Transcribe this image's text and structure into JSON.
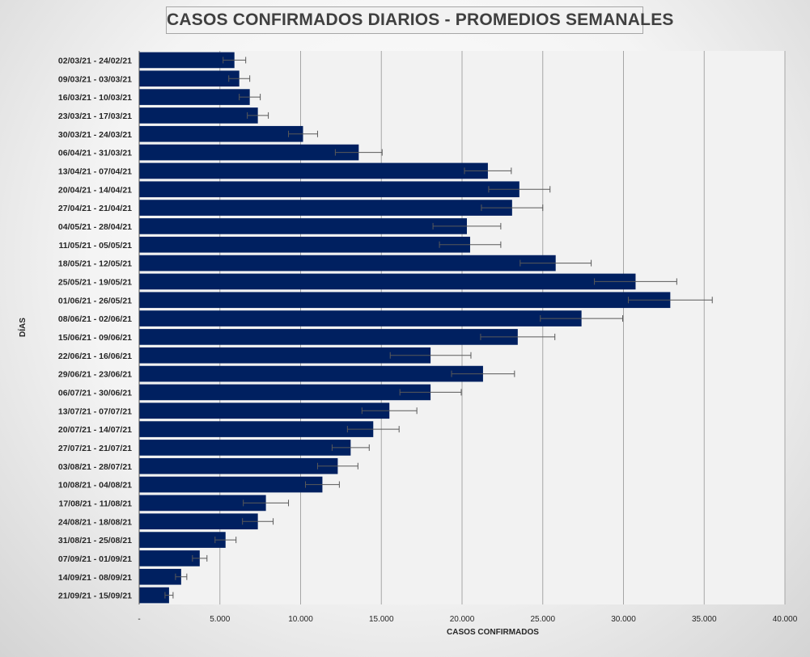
{
  "chart_data": {
    "type": "bar",
    "orientation": "horizontal",
    "title": "CASOS CONFIRMADOS DIARIOS - PROMEDIOS SEMANALES",
    "xlabel": "CASOS CONFIRMADOS",
    "ylabel": "DÍAS",
    "xlim": [
      0,
      40000
    ],
    "xticks": [
      0,
      5000,
      10000,
      15000,
      20000,
      25000,
      30000,
      35000,
      40000
    ],
    "xtick_labels": [
      "-",
      "5.000",
      "10.000",
      "15.000",
      "20.000",
      "25.000",
      "30.000",
      "35.000",
      "40.000"
    ],
    "grid": true,
    "legend": "none",
    "bar_color": "#002060",
    "error_color": "#595959",
    "categories": [
      "02/03/21 - 24/02/21",
      "09/03/21 - 03/03/21",
      "16/03/21 - 10/03/21",
      "23/03/21 - 17/03/21",
      "30/03/21 - 24/03/21",
      "06/04/21 - 31/03/21",
      "13/04/21 - 07/04/21",
      "20/04/21 - 14/04/21",
      "27/04/21 - 21/04/21",
      "04/05/21 - 28/04/21",
      "11/05/21 - 05/05/21",
      "18/05/21 - 12/05/21",
      "25/05/21 - 19/05/21",
      "01/06/21 - 26/05/21",
      "08/06/21 - 02/06/21",
      "15/06/21 - 09/06/21",
      "22/06/21 - 16/06/21",
      "29/06/21 - 23/06/21",
      "06/07/21 - 30/06/21",
      "13/07/21 - 07/07/21",
      "20/07/21 - 14/07/21",
      "27/07/21 - 21/07/21",
      "03/08/21 - 28/07/21",
      "10/08/21 - 04/08/21",
      "17/08/21 - 11/08/21",
      "24/08/21 - 18/08/21",
      "31/08/21 - 25/08/21",
      "07/09/21 - 01/09/21",
      "14/09/21 - 08/09/21",
      "21/09/21 - 15/09/21"
    ],
    "values": [
      5900,
      6200,
      6850,
      7350,
      10150,
      13600,
      21600,
      23550,
      23100,
      20300,
      20500,
      25800,
      30750,
      32900,
      27400,
      23450,
      18050,
      21300,
      18050,
      15500,
      14500,
      13100,
      12300,
      11350,
      7850,
      7350,
      5350,
      3750,
      2600,
      1850
    ],
    "errors": [
      700,
      650,
      650,
      650,
      900,
      1450,
      1450,
      1900,
      1900,
      2100,
      1900,
      2200,
      2550,
      2600,
      2550,
      2300,
      2500,
      1950,
      1900,
      1700,
      1600,
      1150,
      1250,
      1050,
      1400,
      950,
      650,
      450,
      350,
      250
    ]
  }
}
